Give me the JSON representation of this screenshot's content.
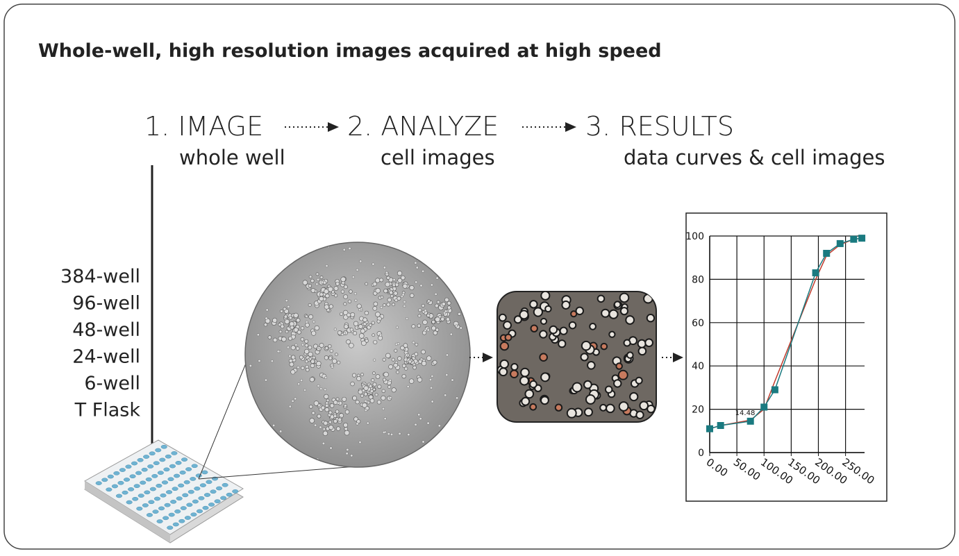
{
  "title": "Whole-well, high resolution images acquired at high speed",
  "steps": [
    {
      "label": "1. IMAGE",
      "sublabel": "whole well"
    },
    {
      "label": "2. ANALYZE",
      "sublabel": "cell images"
    },
    {
      "label": "3. RESULTS",
      "sublabel": "data curves & cell images"
    }
  ],
  "formats": [
    "384-well",
    "96-well",
    "48-well",
    "24-well",
    "6-well",
    "T Flask"
  ],
  "chart": {
    "type": "line",
    "x": [
      0,
      20,
      75,
      100,
      120,
      195,
      215,
      240,
      265,
      280
    ],
    "series": [
      {
        "color": "#1a7a80",
        "values": [
          11,
          12.5,
          14.48,
          21,
          29,
          83,
          92,
          96.5,
          98.5,
          99
        ],
        "value_labels": [
          null,
          null,
          "14.48",
          null,
          null,
          null,
          null,
          null,
          null,
          null
        ]
      },
      {
        "color": "#c0392b",
        "values": [
          11,
          12.5,
          15,
          20,
          33,
          80,
          91,
          96,
          98.5,
          99
        ]
      }
    ],
    "xlim": [
      0,
      285
    ],
    "ylim": [
      0,
      100
    ],
    "xticks": [
      {
        "value": 0,
        "label": "0.00"
      },
      {
        "value": 50,
        "label": "50.00"
      },
      {
        "value": 100,
        "label": "100.00"
      },
      {
        "value": 150,
        "label": "150.00"
      },
      {
        "value": 200,
        "label": "200.00"
      },
      {
        "value": 250,
        "label": "250.00"
      }
    ],
    "yticks": [
      0,
      20,
      40,
      60,
      80,
      100
    ],
    "grid": true
  }
}
